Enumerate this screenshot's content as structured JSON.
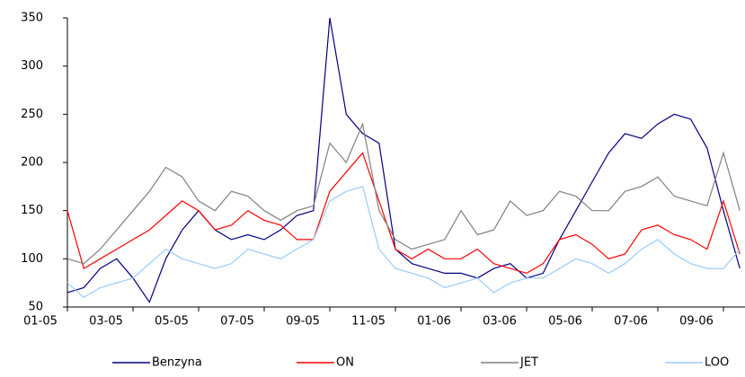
{
  "chart_data": {
    "type": "line",
    "categories": [
      "01-05",
      null,
      null,
      null,
      "03-05",
      null,
      null,
      null,
      "05-05",
      null,
      null,
      null,
      "07-05",
      null,
      null,
      null,
      "09-05",
      null,
      null,
      null,
      "11-05",
      null,
      null,
      null,
      "01-06",
      null,
      null,
      null,
      "03-06",
      null,
      null,
      null,
      "05-06",
      null,
      null,
      null,
      "07-06",
      null,
      null,
      null,
      "09-06",
      null
    ],
    "series": [
      {
        "name": "Benzyna",
        "color": "#000080",
        "values": [
          65,
          70,
          90,
          100,
          80,
          55,
          100,
          130,
          150,
          130,
          120,
          125,
          120,
          130,
          145,
          150,
          350,
          250,
          230,
          220,
          110,
          95,
          90,
          85,
          85,
          80,
          90,
          95,
          80,
          85,
          120,
          150,
          180,
          210,
          230,
          225,
          240,
          250,
          245,
          215,
          150,
          90
        ]
      },
      {
        "name": "ON",
        "color": "#ff0000",
        "values": [
          150,
          90,
          100,
          110,
          120,
          130,
          145,
          160,
          150,
          130,
          135,
          150,
          140,
          135,
          120,
          120,
          170,
          190,
          210,
          160,
          110,
          100,
          110,
          100,
          100,
          110,
          95,
          90,
          85,
          95,
          120,
          125,
          115,
          100,
          105,
          130,
          135,
          125,
          120,
          110,
          160,
          105
        ]
      },
      {
        "name": "JET",
        "color": "#808080",
        "values": [
          100,
          95,
          110,
          130,
          150,
          170,
          195,
          185,
          160,
          150,
          170,
          165,
          150,
          140,
          150,
          155,
          220,
          200,
          240,
          150,
          120,
          110,
          115,
          120,
          150,
          125,
          130,
          160,
          145,
          150,
          170,
          165,
          150,
          150,
          170,
          175,
          185,
          165,
          160,
          155,
          210,
          150
        ]
      },
      {
        "name": "LOO",
        "color": "#99ccff",
        "values": [
          75,
          60,
          70,
          75,
          80,
          95,
          110,
          100,
          95,
          90,
          95,
          110,
          105,
          100,
          110,
          120,
          160,
          170,
          175,
          110,
          90,
          85,
          80,
          70,
          75,
          80,
          65,
          75,
          80,
          80,
          90,
          100,
          95,
          85,
          95,
          110,
          120,
          105,
          95,
          90,
          90,
          110
        ]
      }
    ],
    "ylim": [
      50,
      350
    ],
    "yticks": [
      50,
      100,
      150,
      200,
      250,
      300,
      350
    ],
    "grid": false
  }
}
